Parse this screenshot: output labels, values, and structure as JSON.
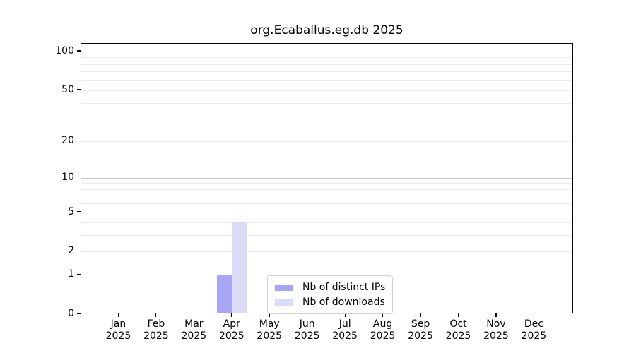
{
  "title": "org.Ecaballus.eg.db 2025",
  "chart_data": {
    "type": "bar",
    "title": "org.Ecaballus.eg.db 2025",
    "categories": [
      "Jan",
      "Feb",
      "Mar",
      "Apr",
      "May",
      "Jun",
      "Jul",
      "Aug",
      "Sep",
      "Oct",
      "Nov",
      "Dec"
    ],
    "year_label": "2025",
    "series": [
      {
        "name": "Nb of distinct IPs",
        "color": "#a6a6f4",
        "values": [
          0,
          0,
          0,
          1,
          0,
          0,
          0,
          0,
          0,
          0,
          0,
          0
        ]
      },
      {
        "name": "Nb of downloads",
        "color": "#dbdbf8",
        "values": [
          0,
          0,
          0,
          4,
          0,
          0,
          0,
          0,
          0,
          0,
          0,
          0
        ]
      }
    ],
    "yscale": "log1p",
    "ylim": [
      0,
      114.7
    ],
    "y_ticks": [
      0,
      1,
      2,
      5,
      10,
      20,
      50,
      100
    ],
    "gridlines_minor": [
      2,
      3,
      4,
      5,
      6,
      7,
      8,
      9,
      20,
      30,
      40,
      50,
      60,
      70,
      80,
      90
    ],
    "gridlines_major": [
      1,
      10,
      100
    ],
    "grid": "horizontal",
    "legend_position": "bottom-center",
    "bar_width_fraction": 0.4
  },
  "colors": {
    "background": "#ffffff",
    "spine": "#000000",
    "text": "#000000",
    "grid_minor": "#ebebeb",
    "grid_major": "#c8c8c8",
    "legend_border": "#d2d2d2"
  }
}
